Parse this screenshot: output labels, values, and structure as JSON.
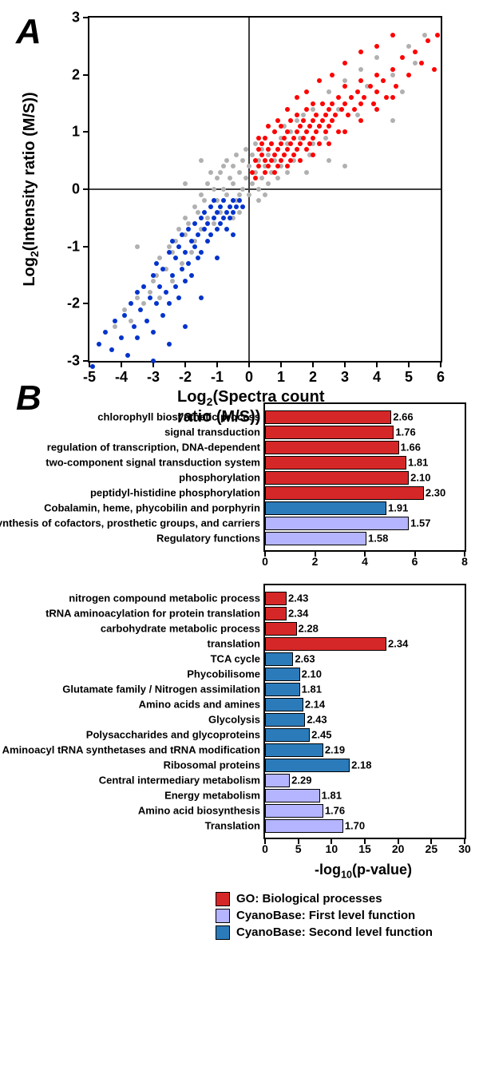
{
  "panelA": {
    "label": "A",
    "type": "scatter",
    "xlabel": "Log2(Spectra count ratio (M/S))",
    "ylabel": "Log2(Intensity ratio (M/S))",
    "xlim": [
      -5,
      6
    ],
    "ylim": [
      -3,
      3
    ],
    "xtick_step": 1,
    "ytick_step": 1,
    "axis_line_color": "#404040",
    "border_color": "#000000",
    "background_color": "#ffffff",
    "label_fontsize": 20,
    "tick_fontsize": 18,
    "marker_size": 6,
    "colors": {
      "gray": "#b0b0b0",
      "red": "#ff0000",
      "blue": "#0033cc"
    },
    "gray_points": [
      [
        -4.2,
        -2.4
      ],
      [
        -3.9,
        -2.1
      ],
      [
        -3.7,
        -2.3
      ],
      [
        -3.5,
        -1.9
      ],
      [
        -3.3,
        -2.0
      ],
      [
        -3.1,
        -1.8
      ],
      [
        -3.0,
        -1.6
      ],
      [
        -2.9,
        -1.5
      ],
      [
        -2.8,
        -1.9
      ],
      [
        -2.8,
        -1.2
      ],
      [
        -2.6,
        -1.4
      ],
      [
        -2.5,
        -1.0
      ],
      [
        -2.4,
        -1.6
      ],
      [
        -2.4,
        -1.1
      ],
      [
        -2.3,
        -0.9
      ],
      [
        -2.2,
        -0.7
      ],
      [
        -2.1,
        -1.3
      ],
      [
        -2.0,
        -0.5
      ],
      [
        -2.0,
        -0.8
      ],
      [
        -1.9,
        -0.6
      ],
      [
        -1.8,
        -1.1
      ],
      [
        -1.7,
        -0.3
      ],
      [
        -1.7,
        -0.9
      ],
      [
        -1.6,
        -0.4
      ],
      [
        -1.5,
        -0.1
      ],
      [
        -1.5,
        -0.7
      ],
      [
        -1.4,
        -0.2
      ],
      [
        -1.3,
        -0.5
      ],
      [
        -1.3,
        0.1
      ],
      [
        -1.2,
        -0.3
      ],
      [
        -1.1,
        0.0
      ],
      [
        -1.1,
        -0.6
      ],
      [
        -1.0,
        0.2
      ],
      [
        -1.0,
        -0.2
      ],
      [
        -0.9,
        -0.4
      ],
      [
        -0.9,
        0.3
      ],
      [
        -0.8,
        0.0
      ],
      [
        -0.8,
        0.4
      ],
      [
        -0.7,
        -0.1
      ],
      [
        -0.7,
        0.5
      ],
      [
        -0.6,
        0.2
      ],
      [
        -0.6,
        -0.3
      ],
      [
        -0.5,
        0.1
      ],
      [
        -0.5,
        0.4
      ],
      [
        -0.4,
        0.6
      ],
      [
        -0.4,
        -0.2
      ],
      [
        -0.3,
        0.3
      ],
      [
        -0.3,
        -0.1
      ],
      [
        -0.2,
        0.5
      ],
      [
        -0.2,
        0.0
      ],
      [
        -0.1,
        0.2
      ],
      [
        -0.1,
        0.7
      ],
      [
        0.0,
        0.4
      ],
      [
        0.0,
        -0.1
      ],
      [
        0.1,
        0.6
      ],
      [
        0.1,
        0.1
      ],
      [
        0.2,
        0.3
      ],
      [
        0.2,
        0.8
      ],
      [
        0.3,
        0.5
      ],
      [
        0.3,
        0.0
      ],
      [
        0.4,
        0.7
      ],
      [
        0.4,
        0.2
      ],
      [
        0.5,
        0.4
      ],
      [
        0.5,
        0.9
      ],
      [
        0.6,
        0.6
      ],
      [
        0.6,
        0.1
      ],
      [
        0.7,
        0.8
      ],
      [
        0.7,
        0.3
      ],
      [
        0.8,
        0.5
      ],
      [
        0.8,
        1.0
      ],
      [
        0.9,
        0.7
      ],
      [
        0.9,
        0.2
      ],
      [
        1.0,
        0.9
      ],
      [
        1.0,
        0.4
      ],
      [
        1.1,
        0.6
      ],
      [
        1.1,
        1.1
      ],
      [
        1.2,
        0.8
      ],
      [
        1.2,
        0.3
      ],
      [
        1.3,
        1.0
      ],
      [
        1.4,
        0.5
      ],
      [
        1.5,
        1.2
      ],
      [
        1.5,
        0.7
      ],
      [
        1.6,
        0.9
      ],
      [
        1.7,
        1.3
      ],
      [
        1.8,
        1.0
      ],
      [
        1.9,
        0.6
      ],
      [
        2.0,
        1.4
      ],
      [
        2.0,
        0.8
      ],
      [
        2.2,
        1.1
      ],
      [
        2.3,
        1.5
      ],
      [
        2.4,
        0.9
      ],
      [
        2.5,
        1.7
      ],
      [
        2.6,
        1.2
      ],
      [
        2.8,
        1.4
      ],
      [
        3.0,
        1.9
      ],
      [
        3.0,
        1.0
      ],
      [
        3.2,
        1.6
      ],
      [
        3.4,
        1.3
      ],
      [
        3.5,
        2.1
      ],
      [
        3.7,
        1.8
      ],
      [
        3.9,
        1.5
      ],
      [
        4.0,
        2.3
      ],
      [
        4.2,
        1.9
      ],
      [
        4.5,
        2.0
      ],
      [
        4.8,
        1.7
      ],
      [
        5.0,
        2.5
      ],
      [
        5.2,
        2.2
      ],
      [
        5.5,
        2.7
      ],
      [
        -0.5,
        -0.5
      ],
      [
        -0.3,
        -0.4
      ],
      [
        0.3,
        -0.2
      ],
      [
        0.5,
        -0.1
      ],
      [
        -1.2,
        0.3
      ],
      [
        1.8,
        0.3
      ],
      [
        2.5,
        0.5
      ],
      [
        -2.0,
        0.1
      ],
      [
        -1.5,
        0.5
      ],
      [
        3.0,
        0.4
      ],
      [
        -3.5,
        -1.0
      ],
      [
        4.5,
        1.2
      ]
    ],
    "red_points": [
      [
        0.1,
        0.3
      ],
      [
        0.2,
        0.5
      ],
      [
        0.3,
        0.7
      ],
      [
        0.3,
        0.4
      ],
      [
        0.4,
        0.6
      ],
      [
        0.4,
        0.8
      ],
      [
        0.5,
        0.5
      ],
      [
        0.5,
        0.9
      ],
      [
        0.6,
        0.7
      ],
      [
        0.6,
        0.4
      ],
      [
        0.7,
        0.8
      ],
      [
        0.7,
        0.5
      ],
      [
        0.8,
        0.6
      ],
      [
        0.8,
        1.0
      ],
      [
        0.9,
        0.7
      ],
      [
        0.9,
        0.4
      ],
      [
        1.0,
        0.8
      ],
      [
        1.0,
        0.5
      ],
      [
        1.0,
        1.1
      ],
      [
        1.1,
        0.6
      ],
      [
        1.1,
        0.9
      ],
      [
        1.2,
        0.7
      ],
      [
        1.2,
        1.0
      ],
      [
        1.3,
        0.8
      ],
      [
        1.3,
        0.5
      ],
      [
        1.3,
        1.2
      ],
      [
        1.4,
        0.9
      ],
      [
        1.4,
        0.6
      ],
      [
        1.5,
        1.0
      ],
      [
        1.5,
        0.7
      ],
      [
        1.5,
        1.3
      ],
      [
        1.6,
        0.8
      ],
      [
        1.6,
        1.1
      ],
      [
        1.7,
        0.9
      ],
      [
        1.7,
        1.2
      ],
      [
        1.8,
        1.0
      ],
      [
        1.8,
        0.7
      ],
      [
        1.8,
        1.4
      ],
      [
        1.9,
        1.1
      ],
      [
        1.9,
        0.8
      ],
      [
        2.0,
        1.2
      ],
      [
        2.0,
        0.9
      ],
      [
        2.0,
        1.5
      ],
      [
        2.1,
        1.0
      ],
      [
        2.1,
        1.3
      ],
      [
        2.2,
        1.1
      ],
      [
        2.2,
        0.8
      ],
      [
        2.3,
        1.2
      ],
      [
        2.3,
        1.5
      ],
      [
        2.4,
        1.0
      ],
      [
        2.4,
        1.3
      ],
      [
        2.5,
        1.4
      ],
      [
        2.5,
        1.1
      ],
      [
        2.6,
        1.5
      ],
      [
        2.6,
        1.2
      ],
      [
        2.7,
        1.3
      ],
      [
        2.8,
        1.6
      ],
      [
        2.8,
        1.0
      ],
      [
        2.9,
        1.4
      ],
      [
        3.0,
        1.5
      ],
      [
        3.0,
        1.8
      ],
      [
        3.1,
        1.3
      ],
      [
        3.2,
        1.6
      ],
      [
        3.3,
        1.4
      ],
      [
        3.4,
        1.7
      ],
      [
        3.5,
        1.5
      ],
      [
        3.5,
        1.9
      ],
      [
        3.6,
        1.6
      ],
      [
        3.8,
        1.8
      ],
      [
        3.9,
        1.5
      ],
      [
        4.0,
        2.0
      ],
      [
        4.0,
        1.7
      ],
      [
        4.2,
        1.9
      ],
      [
        4.3,
        1.6
      ],
      [
        4.5,
        2.1
      ],
      [
        4.6,
        1.8
      ],
      [
        4.8,
        2.3
      ],
      [
        5.0,
        2.0
      ],
      [
        5.2,
        2.4
      ],
      [
        5.4,
        2.2
      ],
      [
        5.6,
        2.6
      ],
      [
        5.8,
        2.1
      ],
      [
        5.9,
        2.7
      ],
      [
        0.2,
        0.2
      ],
      [
        0.5,
        0.3
      ],
      [
        0.8,
        0.3
      ],
      [
        1.2,
        0.4
      ],
      [
        1.6,
        0.5
      ],
      [
        2.0,
        0.6
      ],
      [
        2.5,
        0.8
      ],
      [
        3.0,
        1.0
      ],
      [
        3.5,
        1.2
      ],
      [
        4.0,
        1.4
      ],
      [
        4.5,
        1.6
      ],
      [
        0.3,
        0.9
      ],
      [
        0.6,
        1.1
      ],
      [
        0.9,
        1.2
      ],
      [
        1.2,
        1.4
      ],
      [
        1.5,
        1.6
      ],
      [
        1.8,
        1.7
      ],
      [
        2.2,
        1.9
      ],
      [
        2.6,
        2.0
      ],
      [
        3.0,
        2.2
      ],
      [
        3.5,
        2.4
      ],
      [
        4.0,
        2.5
      ],
      [
        4.5,
        2.7
      ]
    ],
    "blue_points": [
      [
        -4.7,
        -2.7
      ],
      [
        -4.5,
        -2.5
      ],
      [
        -4.3,
        -2.8
      ],
      [
        -4.2,
        -2.3
      ],
      [
        -4.0,
        -2.6
      ],
      [
        -3.9,
        -2.2
      ],
      [
        -3.8,
        -2.9
      ],
      [
        -3.7,
        -2.0
      ],
      [
        -3.6,
        -2.4
      ],
      [
        -3.5,
        -1.8
      ],
      [
        -3.5,
        -2.6
      ],
      [
        -3.4,
        -2.1
      ],
      [
        -3.3,
        -1.7
      ],
      [
        -3.2,
        -2.3
      ],
      [
        -3.1,
        -1.9
      ],
      [
        -3.0,
        -1.5
      ],
      [
        -3.0,
        -2.5
      ],
      [
        -2.9,
        -2.0
      ],
      [
        -2.9,
        -1.3
      ],
      [
        -2.8,
        -1.7
      ],
      [
        -2.7,
        -2.2
      ],
      [
        -2.7,
        -1.4
      ],
      [
        -2.6,
        -1.8
      ],
      [
        -2.5,
        -1.1
      ],
      [
        -2.5,
        -2.0
      ],
      [
        -2.4,
        -1.5
      ],
      [
        -2.4,
        -0.9
      ],
      [
        -2.3,
        -1.7
      ],
      [
        -2.3,
        -1.2
      ],
      [
        -2.2,
        -1.0
      ],
      [
        -2.2,
        -1.9
      ],
      [
        -2.1,
        -1.4
      ],
      [
        -2.1,
        -0.8
      ],
      [
        -2.0,
        -1.6
      ],
      [
        -2.0,
        -1.1
      ],
      [
        -1.9,
        -0.7
      ],
      [
        -1.9,
        -1.3
      ],
      [
        -1.8,
        -0.9
      ],
      [
        -1.8,
        -1.5
      ],
      [
        -1.7,
        -1.0
      ],
      [
        -1.7,
        -0.6
      ],
      [
        -1.6,
        -1.2
      ],
      [
        -1.6,
        -0.8
      ],
      [
        -1.5,
        -0.5
      ],
      [
        -1.5,
        -1.1
      ],
      [
        -1.4,
        -0.7
      ],
      [
        -1.4,
        -0.4
      ],
      [
        -1.3,
        -0.9
      ],
      [
        -1.3,
        -0.6
      ],
      [
        -1.2,
        -0.3
      ],
      [
        -1.2,
        -0.8
      ],
      [
        -1.1,
        -0.5
      ],
      [
        -1.1,
        -0.2
      ],
      [
        -1.0,
        -0.7
      ],
      [
        -1.0,
        -0.4
      ],
      [
        -0.9,
        -0.6
      ],
      [
        -0.9,
        -0.3
      ],
      [
        -0.8,
        -0.5
      ],
      [
        -0.8,
        -0.2
      ],
      [
        -0.7,
        -0.4
      ],
      [
        -0.7,
        -0.7
      ],
      [
        -0.6,
        -0.3
      ],
      [
        -0.6,
        -0.5
      ],
      [
        -0.5,
        -0.2
      ],
      [
        -0.5,
        -0.4
      ],
      [
        -0.4,
        -0.3
      ],
      [
        -0.3,
        -0.2
      ],
      [
        -0.2,
        -0.3
      ],
      [
        -4.9,
        -3.1
      ],
      [
        -3.0,
        -3.0
      ],
      [
        -2.5,
        -2.7
      ],
      [
        -2.0,
        -2.4
      ],
      [
        -1.5,
        -1.9
      ],
      [
        -1.0,
        -1.2
      ],
      [
        -0.5,
        -0.8
      ]
    ]
  },
  "panelB": {
    "label": "B",
    "type": "bar",
    "xlabel": "-log10(p-value)",
    "xlabel_fontsize": 18,
    "tick_fontsize": 14,
    "label_fontsize": 13,
    "value_fontsize": 13,
    "background_color": "#ffffff",
    "border_color": "#000000",
    "bar_border_color": "#000000",
    "colors": {
      "go": "#d62728",
      "cyano1": "#b4b4ff",
      "cyano2": "#2b7bba"
    },
    "chart1": {
      "xlim": [
        0,
        8
      ],
      "xtick_step": 2,
      "bars": [
        {
          "label": "chlorophyll biosynthetic process",
          "value": 5.0,
          "val_text": "2.66",
          "color_key": "go"
        },
        {
          "label": "signal transduction",
          "value": 5.1,
          "val_text": "1.76",
          "color_key": "go"
        },
        {
          "label": "regulation of transcription, DNA-dependent",
          "value": 5.3,
          "val_text": "1.66",
          "color_key": "go"
        },
        {
          "label": "two-component signal transduction system",
          "value": 5.6,
          "val_text": "1.81",
          "color_key": "go"
        },
        {
          "label": "phosphorylation",
          "value": 5.7,
          "val_text": "2.10",
          "color_key": "go"
        },
        {
          "label": "peptidyl-histidine phosphorylation",
          "value": 6.3,
          "val_text": "2.30",
          "color_key": "go"
        },
        {
          "label": "Cobalamin, heme, phycobilin and porphyrin",
          "value": 4.8,
          "val_text": "1.91",
          "color_key": "cyano2"
        },
        {
          "label": "Biosynthesis of cofactors, prosthetic groups, and carriers",
          "value": 5.7,
          "val_text": "1.57",
          "color_key": "cyano1"
        },
        {
          "label": "Regulatory functions",
          "value": 4.0,
          "val_text": "1.58",
          "color_key": "cyano1"
        }
      ]
    },
    "chart2": {
      "xlim": [
        0,
        30
      ],
      "xtick_step": 5,
      "bars": [
        {
          "label": "nitrogen compound metabolic process",
          "value": 3.0,
          "val_text": "2.43",
          "color_key": "go"
        },
        {
          "label": "tRNA aminoacylation for protein translation",
          "value": 3.0,
          "val_text": "2.34",
          "color_key": "go"
        },
        {
          "label": "carbohydrate metabolic process",
          "value": 4.5,
          "val_text": "2.28",
          "color_key": "go"
        },
        {
          "label": "translation",
          "value": 18.0,
          "val_text": "2.34",
          "color_key": "go"
        },
        {
          "label": "TCA cycle",
          "value": 4.0,
          "val_text": "2.63",
          "color_key": "cyano2"
        },
        {
          "label": "Phycobilisome",
          "value": 5.0,
          "val_text": "2.10",
          "color_key": "cyano2"
        },
        {
          "label": "Glutamate family / Nitrogen assimilation",
          "value": 5.0,
          "val_text": "1.81",
          "color_key": "cyano2"
        },
        {
          "label": "Amino acids and amines",
          "value": 5.5,
          "val_text": "2.14",
          "color_key": "cyano2"
        },
        {
          "label": "Glycolysis",
          "value": 5.8,
          "val_text": "2.43",
          "color_key": "cyano2"
        },
        {
          "label": "Polysaccharides and glycoproteins",
          "value": 6.5,
          "val_text": "2.45",
          "color_key": "cyano2"
        },
        {
          "label": "Aminoacyl tRNA synthetases and tRNA modification",
          "value": 8.5,
          "val_text": "2.19",
          "color_key": "cyano2"
        },
        {
          "label": "Ribosomal proteins",
          "value": 12.5,
          "val_text": "2.18",
          "color_key": "cyano2"
        },
        {
          "label": "Central intermediary metabolism",
          "value": 3.5,
          "val_text": "2.29",
          "color_key": "cyano1"
        },
        {
          "label": "Energy metabolism",
          "value": 8.0,
          "val_text": "1.81",
          "color_key": "cyano1"
        },
        {
          "label": "Amino acid biosynthesis",
          "value": 8.5,
          "val_text": "1.76",
          "color_key": "cyano1"
        },
        {
          "label": "Translation",
          "value": 11.5,
          "val_text": "1.70",
          "color_key": "cyano1"
        }
      ]
    },
    "legend": [
      {
        "color_key": "go",
        "text": "GO: Biological processes"
      },
      {
        "color_key": "cyano1",
        "text": "CyanoBase: First level function"
      },
      {
        "color_key": "cyano2",
        "text": "CyanoBase: Second level function"
      }
    ]
  }
}
